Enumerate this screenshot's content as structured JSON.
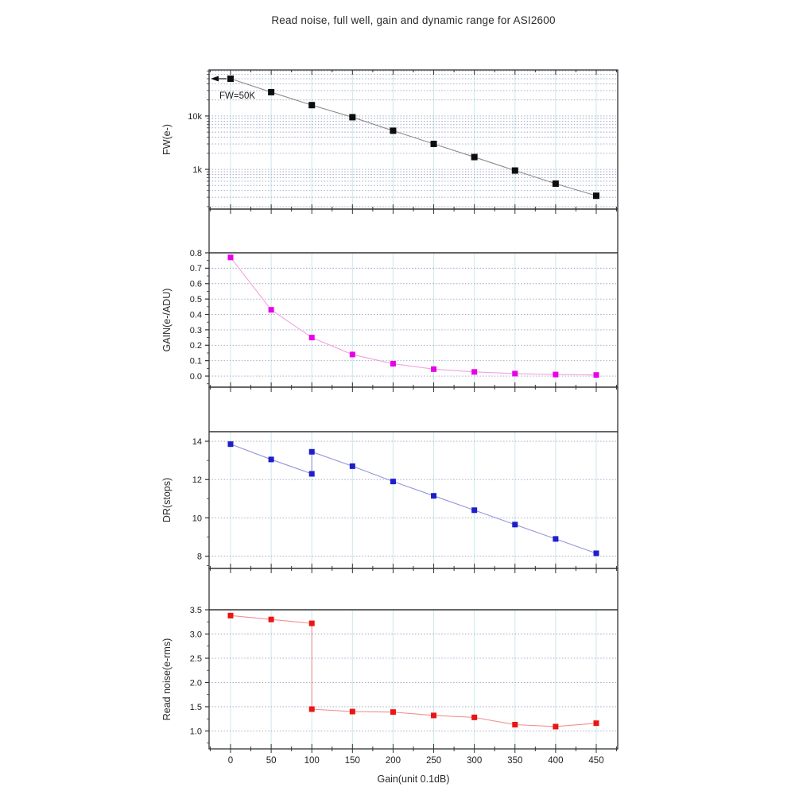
{
  "title": "Read noise, full well, gain and dynamic range for ASI2600",
  "style": {
    "frame": "#333333",
    "grid_vertical": "#cdecec",
    "grid_horizontal": "#9aa0c4",
    "tick_label": "#222222",
    "text": "#2a2a2a"
  },
  "x_axis": {
    "label": "Gain(unit 0.1dB)",
    "ticks": [
      {
        "v": 0,
        "label": "0"
      },
      {
        "v": 50,
        "label": "50"
      },
      {
        "v": 100,
        "label": "100"
      },
      {
        "v": 150,
        "label": "150"
      },
      {
        "v": 200,
        "label": "200"
      },
      {
        "v": 250,
        "label": "250"
      },
      {
        "v": 300,
        "label": "300"
      },
      {
        "v": 350,
        "label": "350"
      },
      {
        "v": 400,
        "label": "400"
      },
      {
        "v": 450,
        "label": "450"
      }
    ]
  },
  "chart_data": [
    {
      "name": "full-well",
      "type": "line",
      "ylabel": "FW(e-)",
      "yscale": "log",
      "ylim": [
        180,
        73000
      ],
      "yticks": [
        {
          "v": 10000,
          "label": "10k"
        },
        {
          "v": 1000,
          "label": "1k"
        }
      ],
      "x": [
        0,
        50,
        100,
        150,
        200,
        250,
        300,
        350,
        400,
        450
      ],
      "values": [
        50000,
        28000,
        16000,
        9500,
        5300,
        3000,
        1700,
        950,
        540,
        320
      ],
      "marker_color": "#0d0d0d",
      "line_color": "#8c8c8c",
      "annotation": {
        "text": "FW=50K",
        "value": 50000
      }
    },
    {
      "name": "gain",
      "type": "line",
      "ylabel": "GAIN(e-/ADU)",
      "yscale": "linear",
      "ylim": [
        -0.072,
        0.8
      ],
      "yticks": [
        {
          "v": 0.8,
          "label": "0.8"
        },
        {
          "v": 0.7,
          "label": "0.7"
        },
        {
          "v": 0.6,
          "label": "0.6"
        },
        {
          "v": 0.5,
          "label": "0.5"
        },
        {
          "v": 0.4,
          "label": "0.4"
        },
        {
          "v": 0.3,
          "label": "0.3"
        },
        {
          "v": 0.2,
          "label": "0.2"
        },
        {
          "v": 0.1,
          "label": "0.1"
        },
        {
          "v": 0.0,
          "label": "0.0"
        }
      ],
      "yticks_minor": [
        0.75,
        0.65,
        0.55,
        0.45,
        0.35,
        0.25,
        0.15,
        0.05,
        -0.05
      ],
      "x": [
        0,
        50,
        100,
        150,
        200,
        250,
        300,
        350,
        400,
        450
      ],
      "values": [
        0.77,
        0.43,
        0.25,
        0.14,
        0.08,
        0.045,
        0.027,
        0.016,
        0.01,
        0.007
      ],
      "marker_color": "#e800e8",
      "line_color": "#f2a3dd"
    },
    {
      "name": "dynamic-range",
      "type": "line",
      "ylabel": "DR(stops)",
      "yscale": "linear",
      "ylim": [
        7.36,
        14.5
      ],
      "yticks": [
        {
          "v": 14,
          "label": "14"
        },
        {
          "v": 12,
          "label": "12"
        },
        {
          "v": 10,
          "label": "10"
        },
        {
          "v": 8,
          "label": "8"
        }
      ],
      "yticks_minor": [
        13,
        11,
        9,
        7.5
      ],
      "x": [
        0,
        50,
        100,
        100,
        150,
        200,
        250,
        300,
        350,
        400,
        450
      ],
      "values": [
        13.85,
        13.05,
        12.3,
        13.45,
        12.7,
        11.9,
        11.15,
        10.4,
        9.65,
        8.9,
        8.15
      ],
      "marker_color": "#1e1ecb",
      "line_color": "#9595d8"
    },
    {
      "name": "read-noise",
      "type": "line",
      "ylabel": "Read noise(e-rms)",
      "yscale": "linear",
      "ylim": [
        0.63,
        3.5
      ],
      "yticks": [
        {
          "v": 3.5,
          "label": "3.5"
        },
        {
          "v": 3.0,
          "label": "3.0"
        },
        {
          "v": 2.5,
          "label": "2.5"
        },
        {
          "v": 2.0,
          "label": "2.0"
        },
        {
          "v": 1.5,
          "label": "1.5"
        },
        {
          "v": 1.0,
          "label": "1.0"
        }
      ],
      "yticks_minor": [
        3.25,
        2.75,
        2.25,
        1.75,
        1.25,
        0.75
      ],
      "x": [
        0,
        50,
        100,
        100,
        150,
        200,
        250,
        300,
        350,
        400,
        450
      ],
      "values": [
        3.38,
        3.3,
        3.22,
        1.45,
        1.4,
        1.39,
        1.32,
        1.28,
        1.13,
        1.09,
        1.16
      ],
      "marker_color": "#ec1515",
      "line_color": "#f29090"
    }
  ]
}
